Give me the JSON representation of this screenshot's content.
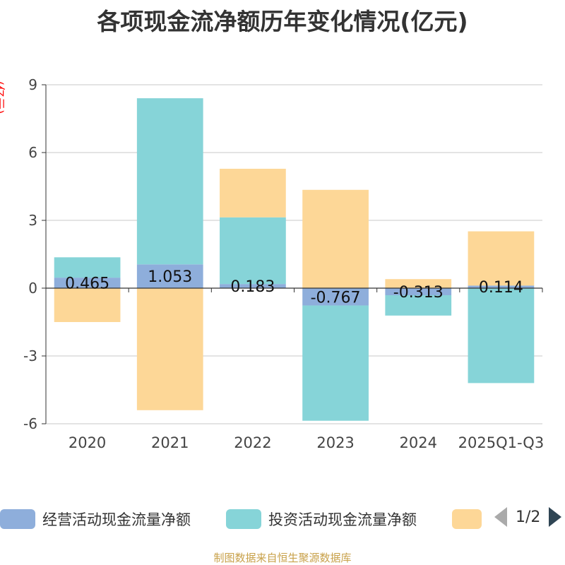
{
  "title": "各项现金流净额历年变化情况(亿元)",
  "unit_label": "(亿元)",
  "source": "制图数据来自恒生聚源数据库",
  "legend": {
    "items": [
      {
        "label": "经营活动现金流量净额",
        "color": "#8eaedb"
      },
      {
        "label": "投资活动现金流量净额",
        "color": "#86d4d8"
      },
      {
        "label": "",
        "color": "#fdd797"
      }
    ],
    "page": "1/2"
  },
  "chart_data": {
    "type": "bar",
    "stacked": true,
    "categories": [
      "2020",
      "2021",
      "2022",
      "2023",
      "2024",
      "2025Q1-Q3"
    ],
    "ylim": [
      -6,
      9
    ],
    "yticks": [
      -6,
      -3,
      0,
      3,
      6,
      9
    ],
    "grid": true,
    "legend_position": "bottom",
    "series": [
      {
        "name": "经营活动现金流量净额",
        "color": "#8eaedb",
        "values": [
          0.465,
          1.053,
          0.183,
          -0.767,
          -0.313,
          0.114
        ],
        "labels": [
          "0.465",
          "1.053",
          "0.183",
          "-0.767",
          "-0.313",
          "0.114"
        ]
      },
      {
        "name": "投资活动现金流量净额",
        "color": "#86d4d8",
        "values": [
          0.9,
          7.35,
          2.95,
          -5.1,
          -0.9,
          -4.2
        ]
      },
      {
        "name": "",
        "color": "#fdd797",
        "values": [
          -1.5,
          -5.4,
          2.15,
          4.35,
          0.4,
          2.4
        ]
      }
    ]
  }
}
